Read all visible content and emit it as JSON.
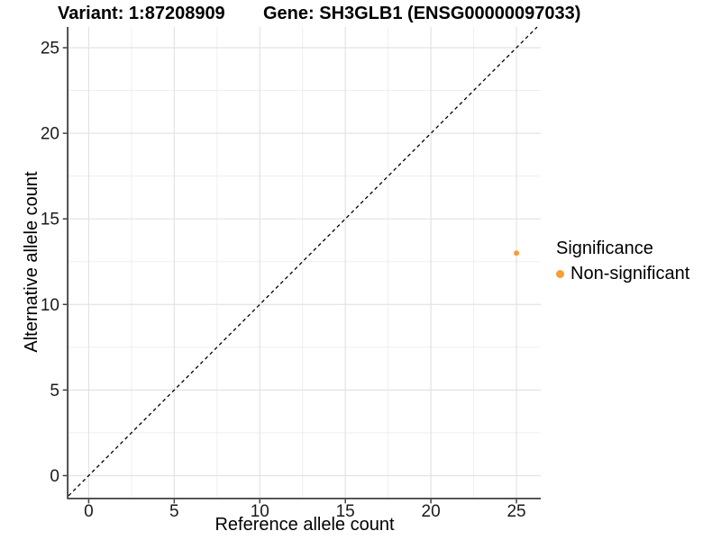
{
  "titles": {
    "left": "Variant: 1:87208909",
    "right": "Gene: SH3GLB1 (ENSG00000097033)"
  },
  "chart_data": {
    "type": "scatter",
    "title": "Variant: 1:87208909 | Gene: SH3GLB1 (ENSG00000097033)",
    "xlabel": "Reference allele count",
    "ylabel": "Alternative allele count",
    "xlim": [
      -1.18,
      26.42
    ],
    "ylim": [
      -1.29,
      26.21
    ],
    "xticks": [
      0,
      5,
      10,
      15,
      20,
      25
    ],
    "yticks": [
      0,
      5,
      10,
      15,
      20,
      25
    ],
    "grid": {
      "major": true,
      "minor": true,
      "minor_step": 2.5
    },
    "identity_line": {
      "slope": 1,
      "intercept": 0,
      "style": "dashed",
      "color": "#000000"
    },
    "series": [
      {
        "name": "Non-significant",
        "color": "#FA9E32",
        "points": [
          {
            "x": 25,
            "y": 13
          }
        ]
      }
    ],
    "legend": {
      "title": "Significance",
      "position": "right",
      "entries": [
        {
          "label": "Non-significant",
          "color": "#FA9E32"
        }
      ]
    }
  },
  "colors": {
    "background": "#ffffff",
    "grid_major": "#e3e3e3",
    "grid_minor": "#efefef",
    "axis_line": "#404040",
    "tick_label": "#1a1a1a",
    "point": "#FA9E32"
  }
}
